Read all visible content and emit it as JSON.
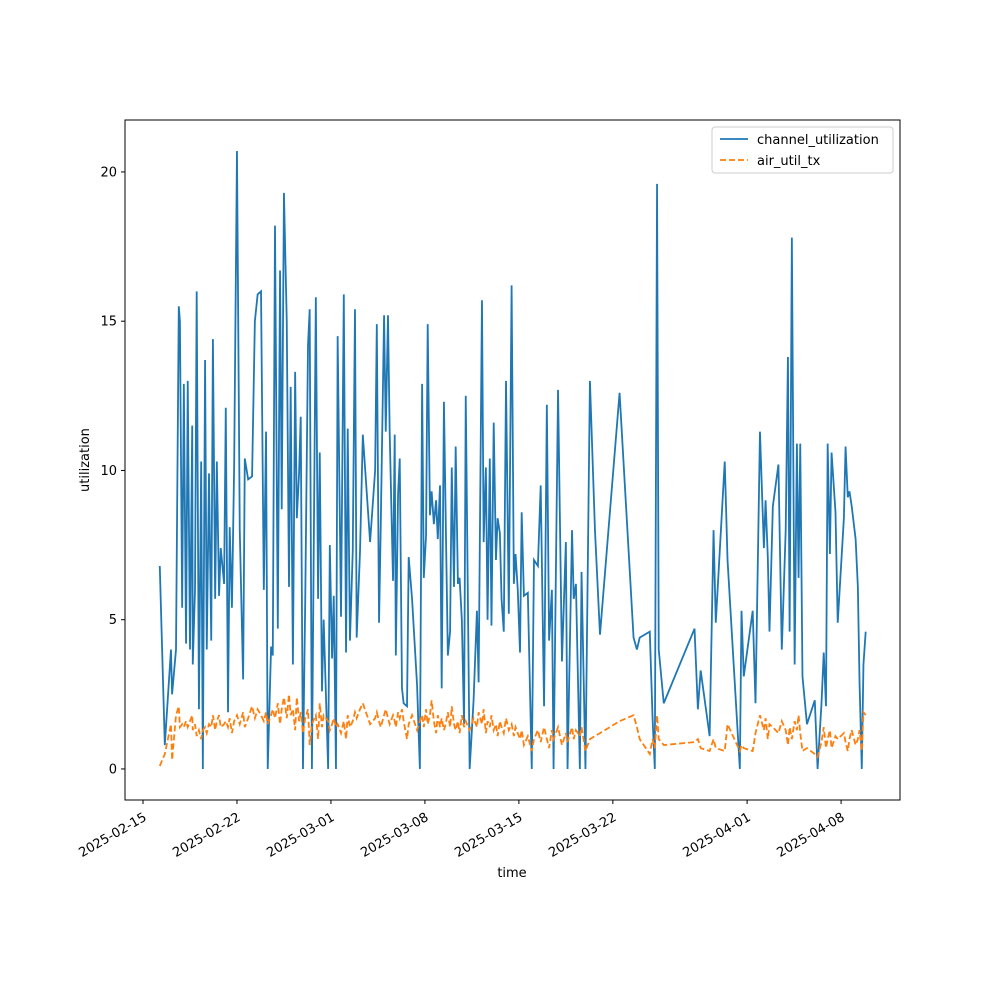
{
  "chart_data": {
    "type": "line",
    "xlabel": "time",
    "ylabel": "utilization",
    "x": [
      "2025-02-16T06:00",
      "2025-02-16T15:00",
      "2025-02-17T02:00",
      "2025-02-17T04:00",
      "2025-02-17T11:00",
      "2025-02-17T16:00",
      "2025-02-17T18:00",
      "2025-02-17T22:00",
      "2025-02-18T01:00",
      "2025-02-18T05:00",
      "2025-02-18T08:00",
      "2025-02-18T12:00",
      "2025-02-18T16:00",
      "2025-02-18T17:00",
      "2025-02-18T21:00",
      "2025-02-19T00:00",
      "2025-02-19T04:00",
      "2025-02-19T08:00",
      "2025-02-19T11:00",
      "2025-02-19T15:00",
      "2025-02-19T18:00",
      "2025-02-19T22:00",
      "2025-02-20T02:00",
      "2025-02-20T05:00",
      "2025-02-20T09:00",
      "2025-02-20T12:00",
      "2025-02-20T16:00",
      "2025-02-20T19:00",
      "2025-02-21T01:00",
      "2025-02-21T04:00",
      "2025-02-21T08:00",
      "2025-02-21T11:00",
      "2025-02-21T15:00",
      "2025-02-21T19:00",
      "2025-02-22T00:00",
      "2025-02-22T05:00",
      "2025-02-22T11:00",
      "2025-02-22T14:00",
      "2025-02-22T20:00",
      "2025-02-23T03:00",
      "2025-02-23T08:00",
      "2025-02-23T13:00",
      "2025-02-23T19:00",
      "2025-02-24T00:00",
      "2025-02-24T04:00",
      "2025-02-24T07:00",
      "2025-02-24T13:00",
      "2025-02-24T16:00",
      "2025-02-24T20:00",
      "2025-02-25T01:00",
      "2025-02-25T05:00",
      "2025-02-25T08:00",
      "2025-02-25T12:00",
      "2025-02-25T17:00",
      "2025-02-25T21:00",
      "2025-02-26T00:00",
      "2025-02-26T04:00",
      "2025-02-26T08:00",
      "2025-02-26T11:00",
      "2025-02-26T15:00",
      "2025-02-26T18:00",
      "2025-02-26T22:00",
      "2025-02-27T02:00",
      "2025-02-27T07:00",
      "2025-02-27T10:00",
      "2025-02-27T14:00",
      "2025-02-27T21:00",
      "2025-02-28T01:00",
      "2025-02-28T04:00",
      "2025-02-28T08:00",
      "2025-02-28T11:00",
      "2025-02-28T19:00",
      "2025-02-28T22:00",
      "2025-03-01T02:00",
      "2025-03-01T05:00",
      "2025-03-01T09:00",
      "2025-03-01T12:00",
      "2025-03-01T18:00",
      "2025-03-01T23:00",
      "2025-03-02T03:00",
      "2025-03-02T06:00",
      "2025-03-02T10:00",
      "2025-03-02T15:00",
      "2025-03-02T19:00",
      "2025-03-02T22:00",
      "2025-03-03T04:00",
      "2025-03-03T09:00",
      "2025-03-03T22:00",
      "2025-03-04T07:00",
      "2025-03-04T10:00",
      "2025-03-04T14:00",
      "2025-03-04T17:00",
      "2025-03-04T23:00",
      "2025-03-05T02:00",
      "2025-03-05T06:00",
      "2025-03-05T09:00",
      "2025-03-05T15:00",
      "2025-03-05T18:00",
      "2025-03-05T20:00",
      "2025-03-06T00:00",
      "2025-03-06T03:00",
      "2025-03-06T07:00",
      "2025-03-06T10:00",
      "2025-03-06T16:00",
      "2025-03-06T19:00",
      "2025-03-07T01:00",
      "2025-03-07T10:00",
      "2025-03-07T15:00",
      "2025-03-07T19:00",
      "2025-03-07T22:00",
      "2025-03-08T02:00",
      "2025-03-08T05:00",
      "2025-03-08T09:00",
      "2025-03-08T12:00",
      "2025-03-08T16:00",
      "2025-03-08T20:00",
      "2025-03-08T23:00",
      "2025-03-09T03:00",
      "2025-03-09T06:00",
      "2025-03-09T10:00",
      "2025-03-09T13:00",
      "2025-03-09T17:00",
      "2025-03-09T21:00",
      "2025-03-10T00:00",
      "2025-03-10T04:00",
      "2025-03-10T07:00",
      "2025-03-10T11:00",
      "2025-03-10T14:00",
      "2025-03-10T18:00",
      "2025-03-10T22:00",
      "2025-03-11T01:00",
      "2025-03-11T08:00",
      "2025-03-11T15:00",
      "2025-03-11T21:00",
      "2025-03-12T00:00",
      "2025-03-12T06:00",
      "2025-03-12T09:00",
      "2025-03-12T13:00",
      "2025-03-12T16:00",
      "2025-03-12T20:00",
      "2025-03-12T23:00",
      "2025-03-13T03:00",
      "2025-03-13T07:00",
      "2025-03-13T10:00",
      "2025-03-13T14:00",
      "2025-03-13T17:00",
      "2025-03-13T21:00",
      "2025-03-14T01:00",
      "2025-03-14T06:00",
      "2025-03-14T11:00",
      "2025-03-14T15:00",
      "2025-03-14T18:00",
      "2025-03-14T22:00",
      "2025-03-15T02:00",
      "2025-03-15T05:00",
      "2025-03-15T09:00",
      "2025-03-15T16:00",
      "2025-03-15T23:00",
      "2025-03-16T03:00",
      "2025-03-16T10:00",
      "2025-03-16T15:00",
      "2025-03-16T21:00",
      "2025-03-17T02:00",
      "2025-03-17T06:00",
      "2025-03-17T11:00",
      "2025-03-17T14:00",
      "2025-03-17T22:00",
      "2025-03-18T05:00",
      "2025-03-18T12:00",
      "2025-03-18T15:00",
      "2025-03-18T23:00",
      "2025-03-19T02:00",
      "2025-03-19T06:00",
      "2025-03-19T13:00",
      "2025-03-19T16:00",
      "2025-03-19T23:00",
      "2025-03-20T07:00",
      "2025-03-20T16:00",
      "2025-03-21T01:00",
      "2025-03-22T12:00",
      "2025-03-23T13:00",
      "2025-03-23T19:00",
      "2025-03-24T00:00",
      "2025-03-24T18:00",
      "2025-03-24T23:00",
      "2025-03-25T03:00",
      "2025-03-25T07:00",
      "2025-03-25T10:00",
      "2025-03-25T19:00",
      "2025-03-28T02:00",
      "2025-03-28T08:00",
      "2025-03-28T13:00",
      "2025-03-29T05:00",
      "2025-03-29T12:00",
      "2025-03-29T16:00",
      "2025-03-30T08:00",
      "2025-03-30T13:00",
      "2025-03-31T11:00",
      "2025-03-31T14:00",
      "2025-03-31T18:00",
      "2025-04-01T10:00",
      "2025-04-01T15:00",
      "2025-04-01T23:00",
      "2025-04-02T06:00",
      "2025-04-02T09:00",
      "2025-04-02T13:00",
      "2025-04-02T16:00",
      "2025-04-02T22:00",
      "2025-04-03T08:00",
      "2025-04-03T14:00",
      "2025-04-03T21:00",
      "2025-04-04T01:00",
      "2025-04-04T04:00",
      "2025-04-04T08:00",
      "2025-04-04T13:00",
      "2025-04-04T17:00",
      "2025-04-04T20:00",
      "2025-04-04T23:00",
      "2025-04-05T03:00",
      "2025-04-05T11:00",
      "2025-04-06T01:00",
      "2025-04-06T06:00",
      "2025-04-06T13:00",
      "2025-04-06T17:00",
      "2025-04-06T21:00",
      "2025-04-07T00:00",
      "2025-04-07T04:00",
      "2025-04-07T07:00",
      "2025-04-07T14:00",
      "2025-04-07T18:00",
      "2025-04-08T05:00",
      "2025-04-08T08:00",
      "2025-04-08T12:00",
      "2025-04-08T15:00",
      "2025-04-08T19:00",
      "2025-04-09T02:00",
      "2025-04-09T06:00",
      "2025-04-09T09:00",
      "2025-04-09T13:00",
      "2025-04-09T16:00",
      "2025-04-09T20:00"
    ],
    "series": [
      {
        "name": "channel_utilization",
        "color": "#1f77b4",
        "dash": "solid",
        "values": [
          6.8,
          0.8,
          4.0,
          2.5,
          4.0,
          15.5,
          15.0,
          5.4,
          12.9,
          4.2,
          13.0,
          4.0,
          11.5,
          3.5,
          6.0,
          16.0,
          2.0,
          10.3,
          0.0,
          13.7,
          4.0,
          9.9,
          4.3,
          14.4,
          5.7,
          10.3,
          5.8,
          7.4,
          6.2,
          12.1,
          1.9,
          8.1,
          5.4,
          10.2,
          20.7,
          8.0,
          3.0,
          10.4,
          9.7,
          9.8,
          15.0,
          15.9,
          16.0,
          6.0,
          11.3,
          0.0,
          4.1,
          3.8,
          18.2,
          4.7,
          16.7,
          8.7,
          19.3,
          15.0,
          6.1,
          12.8,
          3.5,
          13.3,
          8.4,
          9.9,
          11.8,
          0.0,
          5.6,
          14.2,
          15.4,
          0.0,
          15.8,
          5.7,
          10.6,
          2.6,
          5.0,
          0.0,
          7.5,
          3.7,
          5.8,
          0.0,
          14.5,
          5.1,
          15.9,
          3.9,
          11.4,
          4.3,
          7.3,
          15.4,
          4.4,
          7.3,
          11.2,
          7.6,
          10.0,
          14.9,
          4.9,
          8.1,
          15.2,
          11.3,
          15.2,
          11.3,
          6.3,
          11.2,
          3.8,
          9.2,
          10.4,
          2.7,
          2.2,
          2.1,
          7.1,
          5.7,
          2.8,
          0.0,
          12.9,
          6.4,
          7.8,
          14.9,
          8.5,
          9.3,
          8.2,
          9.0,
          7.7,
          9.5,
          2.7,
          12.3,
          8.6,
          3.8,
          4.6,
          10.1,
          6.1,
          10.8,
          6.2,
          6.4,
          5.0,
          1.5,
          12.5,
          0.0,
          2.3,
          5.3,
          2.9,
          15.7,
          7.6,
          10.1,
          5.0,
          10.4,
          4.8,
          11.6,
          7.0,
          8.4,
          7.9,
          5.7,
          4.6,
          13.0,
          5.2,
          16.2,
          6.2,
          7.2,
          6.0,
          3.9,
          8.6,
          5.8,
          5.9,
          0.0,
          7.0,
          6.8,
          9.5,
          2.1,
          12.2,
          4.3,
          6.0,
          0.0,
          12.7,
          3.6,
          7.6,
          0.0,
          8.0,
          5.7,
          6.2,
          0.0,
          6.6,
          0.0,
          13.0,
          8.0,
          4.5,
          12.6,
          4.4,
          4.0,
          4.4,
          4.6,
          1.7,
          0.0,
          19.6,
          4.0,
          2.2,
          4.7,
          2.0,
          3.3,
          1.1,
          8.0,
          4.9,
          10.3,
          7.0,
          0.0,
          5.3,
          3.1,
          5.3,
          2.2,
          11.3,
          7.4,
          9.0,
          7.1,
          4.6,
          8.8,
          10.2,
          4.0,
          8.0,
          13.8,
          4.6,
          17.8,
          3.5,
          10.9,
          6.4,
          10.9,
          3.1,
          1.5,
          2.3,
          0.0,
          2.2,
          3.9,
          2.1,
          10.9,
          7.2,
          10.6,
          8.6,
          4.9,
          8.4,
          10.8,
          9.1,
          9.3,
          8.8,
          7.7,
          6.1,
          2.9,
          0.0,
          3.5,
          4.6
        ]
      },
      {
        "name": "air_util_tx",
        "color": "#ff7f0e",
        "dash": "dashed",
        "values": [
          0.1,
          0.5,
          1.5,
          0.3,
          1.8,
          2.1,
          1.4,
          1.5,
          1.4,
          1.6,
          1.4,
          1.6,
          1.8,
          1.3,
          1.5,
          1.1,
          1.3,
          1.0,
          1.3,
          1.4,
          1.2,
          1.5,
          1.4,
          1.8,
          1.3,
          1.6,
          1.8,
          1.4,
          1.5,
          1.6,
          1.4,
          1.7,
          1.2,
          1.6,
          1.8,
          1.5,
          1.9,
          1.4,
          1.7,
          2.1,
          1.7,
          2.0,
          1.8,
          1.6,
          1.9,
          1.5,
          1.8,
          2.0,
          1.7,
          2.2,
          1.5,
          2.0,
          2.4,
          1.7,
          2.5,
          1.8,
          2.0,
          1.3,
          2.4,
          1.6,
          1.9,
          1.2,
          1.7,
          2.0,
          0.8,
          1.5,
          1.8,
          1.0,
          2.2,
          1.4,
          1.8,
          1.6,
          1.3,
          1.5,
          1.7,
          1.4,
          1.5,
          1.2,
          1.6,
          1.0,
          1.8,
          1.4,
          1.6,
          1.9,
          1.7,
          2.0,
          2.2,
          1.5,
          1.7,
          1.9,
          1.6,
          1.4,
          1.8,
          2.0,
          1.7,
          1.5,
          1.8,
          1.6,
          1.4,
          1.9,
          1.7,
          2.0,
          1.6,
          1.0,
          1.5,
          1.8,
          1.3,
          1.6,
          1.8,
          1.4,
          2.0,
          1.5,
          1.8,
          2.3,
          1.6,
          1.2,
          1.8,
          1.4,
          1.7,
          1.3,
          1.5,
          1.9,
          1.4,
          2.1,
          1.5,
          1.3,
          1.6,
          1.2,
          1.8,
          1.4,
          1.6,
          1.3,
          1.7,
          1.4,
          1.9,
          1.5,
          2.0,
          1.2,
          1.6,
          1.4,
          1.8,
          1.3,
          1.5,
          1.1,
          1.6,
          1.4,
          1.2,
          1.7,
          1.3,
          1.5,
          1.1,
          1.4,
          1.2,
          1.0,
          1.3,
          0.8,
          1.1,
          0.6,
          1.0,
          1.3,
          0.9,
          1.4,
          1.0,
          0.7,
          1.3,
          1.0,
          1.4,
          0.8,
          1.2,
          0.9,
          1.4,
          1.0,
          1.3,
          1.1,
          1.4,
          0.6,
          1.0,
          1.1,
          1.2,
          1.6,
          1.8,
          1.4,
          1.0,
          0.5,
          1.0,
          0.7,
          1.8,
          1.0,
          0.8,
          0.9,
          1.0,
          0.7,
          0.6,
          1.0,
          0.7,
          0.6,
          1.5,
          0.6,
          0.8,
          0.7,
          0.6,
          1.2,
          1.8,
          1.3,
          1.7,
          1.0,
          1.5,
          1.4,
          1.2,
          1.6,
          1.3,
          0.8,
          1.4,
          1.0,
          1.6,
          1.3,
          1.8,
          1.2,
          0.6,
          0.7,
          0.5,
          0.4,
          0.9,
          1.4,
          0.7,
          1.0,
          1.3,
          0.7,
          1.1,
          1.0,
          1.2,
          0.9,
          0.6,
          1.0,
          1.3,
          0.8,
          1.0,
          1.3,
          0.6,
          1.9,
          1.8
        ]
      }
    ],
    "xlim": [
      "2025-02-13T15:50",
      "2025-04-12T09:20"
    ],
    "xticks": [
      "2025-02-15",
      "2025-02-22",
      "2025-03-01",
      "2025-03-08",
      "2025-03-15",
      "2025-03-22",
      "2025-04-01",
      "2025-04-08"
    ],
    "ylim": [
      -1.04,
      21.74
    ],
    "yticks": [
      0,
      5,
      10,
      15,
      20
    ],
    "legend": "upper right",
    "grid": false
  }
}
